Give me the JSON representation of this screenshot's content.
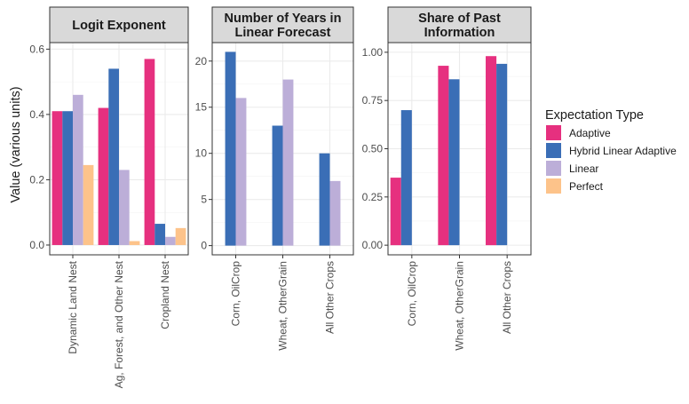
{
  "chart_data": {
    "type": "bar",
    "ylabel": "Value (various units)",
    "legend": {
      "title": "Expectation Type",
      "position": "right",
      "items": [
        {
          "name": "Adaptive",
          "color": "#E6307F"
        },
        {
          "name": "Hybrid Linear Adaptive",
          "color": "#3A6EB6"
        },
        {
          "name": "Linear",
          "color": "#BCAED8"
        },
        {
          "name": "Perfect",
          "color": "#FDC38A"
        }
      ]
    },
    "facets": [
      {
        "title_lines": [
          "Logit Exponent"
        ],
        "ylim": [
          -0.03,
          0.62
        ],
        "yticks": [
          0.0,
          0.2,
          0.4,
          0.6
        ],
        "ytick_labels": [
          "0.0",
          "0.2",
          "0.4",
          "0.6"
        ],
        "categories": [
          "Dynamic Land Nest",
          "Ag, Forest, and Other Nest",
          "Cropland Nest"
        ],
        "series": [
          {
            "name": "Adaptive",
            "values": [
              0.41,
              0.42,
              0.57
            ]
          },
          {
            "name": "Hybrid Linear Adaptive",
            "values": [
              0.41,
              0.54,
              0.065
            ]
          },
          {
            "name": "Linear",
            "values": [
              0.46,
              0.23,
              0.025
            ]
          },
          {
            "name": "Perfect",
            "values": [
              0.245,
              0.012,
              0.052
            ]
          }
        ]
      },
      {
        "title_lines": [
          "Number of Years in",
          "Linear Forecast"
        ],
        "ylim": [
          -1.0,
          22.0
        ],
        "yticks": [
          0,
          5,
          10,
          15,
          20
        ],
        "ytick_labels": [
          "0",
          "5",
          "10",
          "15",
          "20"
        ],
        "categories": [
          "Corn, OilCrop",
          "Wheat, OtherGrain",
          "All Other Crops"
        ],
        "series": [
          {
            "name": "Adaptive",
            "values": [
              null,
              null,
              null
            ]
          },
          {
            "name": "Hybrid Linear Adaptive",
            "values": [
              21,
              13,
              10
            ]
          },
          {
            "name": "Linear",
            "values": [
              16,
              18,
              7
            ]
          },
          {
            "name": "Perfect",
            "values": [
              null,
              null,
              null
            ]
          }
        ]
      },
      {
        "title_lines": [
          "Share of Past",
          "Information"
        ],
        "ylim": [
          -0.05,
          1.05
        ],
        "yticks": [
          0.0,
          0.25,
          0.5,
          0.75,
          1.0
        ],
        "ytick_labels": [
          "0.00",
          "0.25",
          "0.50",
          "0.75",
          "1.00"
        ],
        "categories": [
          "Corn, OilCrop",
          "Wheat, OtherGrain",
          "All Other Crops"
        ],
        "series": [
          {
            "name": "Adaptive",
            "values": [
              0.35,
              0.93,
              0.98
            ]
          },
          {
            "name": "Hybrid Linear Adaptive",
            "values": [
              0.7,
              0.86,
              0.94
            ]
          },
          {
            "name": "Linear",
            "values": [
              null,
              null,
              null
            ]
          },
          {
            "name": "Perfect",
            "values": [
              null,
              null,
              null
            ]
          }
        ]
      }
    ]
  }
}
